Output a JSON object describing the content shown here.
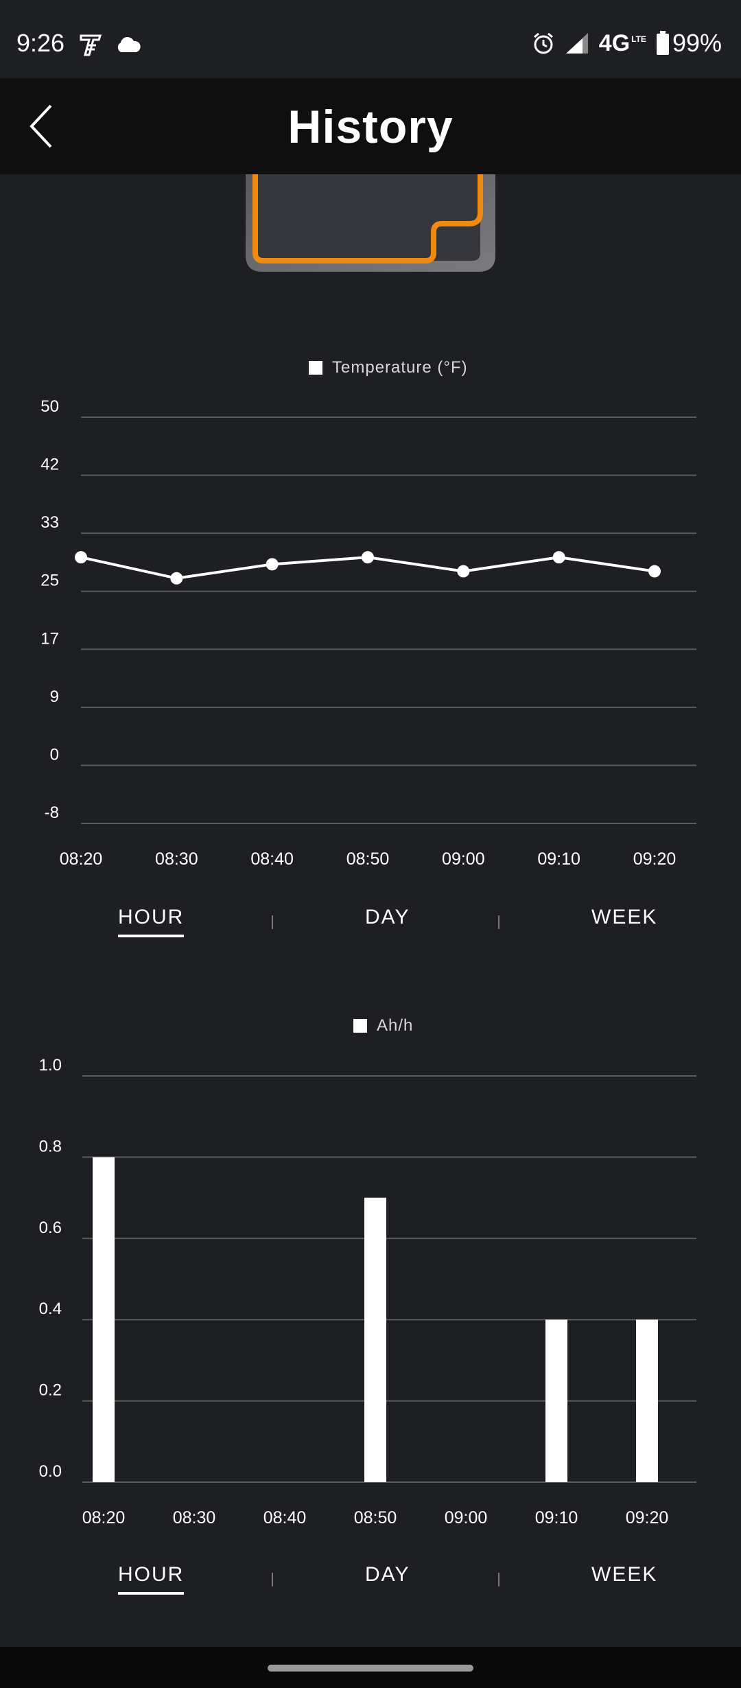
{
  "status_bar": {
    "time": "9:26",
    "left_icons": [
      "t-mobile-tuesdays-icon",
      "cloud-icon"
    ],
    "right_icons": [
      "alarm-icon",
      "signal-icon",
      "battery-icon"
    ],
    "network": "4G",
    "network_sub": "LTE",
    "battery": "99%"
  },
  "header": {
    "title": "History",
    "back_icon": "chevron-left-icon"
  },
  "device_image": {
    "outline_color": "#f08a13",
    "fill_color": "#35363b"
  },
  "temperature": {
    "legend": "Temperature (°F)",
    "tabs": [
      {
        "label": "HOUR",
        "active": true
      },
      {
        "label": "DAY",
        "active": false
      },
      {
        "label": "WEEK",
        "active": false
      }
    ]
  },
  "usage": {
    "legend": "Ah/h",
    "tabs": [
      {
        "label": "HOUR",
        "active": true
      },
      {
        "label": "DAY",
        "active": false
      },
      {
        "label": "WEEK",
        "active": false
      }
    ]
  },
  "chart_data": [
    {
      "type": "line",
      "legend": "Temperature (°F)",
      "x": [
        "08:20",
        "08:30",
        "08:40",
        "08:50",
        "09:00",
        "09:10",
        "09:20"
      ],
      "y_ticks": [
        "50",
        "42",
        "33",
        "25",
        "17",
        "9",
        "0",
        "-8"
      ],
      "ylim": [
        -8,
        50
      ],
      "series": [
        {
          "name": "Temperature (°F)",
          "values": [
            30,
            27,
            29,
            30,
            28,
            30,
            28
          ]
        }
      ],
      "grid": true,
      "legend_position": "top-center"
    },
    {
      "type": "bar",
      "legend": "Ah/h",
      "categories": [
        "08:20",
        "08:30",
        "08:40",
        "08:50",
        "09:00",
        "09:10",
        "09:20"
      ],
      "y_ticks": [
        "1.0",
        "0.8",
        "0.6",
        "0.4",
        "0.2",
        "0.0"
      ],
      "ylim": [
        0,
        1
      ],
      "series": [
        {
          "name": "Ah/h",
          "values": [
            0.8,
            0,
            0,
            0.7,
            0,
            0.4,
            0.4
          ]
        }
      ],
      "grid": true,
      "legend_position": "top-center"
    }
  ]
}
